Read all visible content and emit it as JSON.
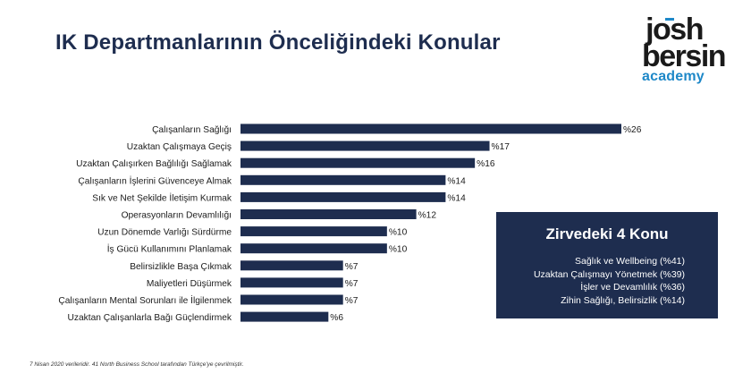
{
  "title": "IK Departmanlarının Önceliğindeki Konular",
  "logo": {
    "line1": "josh",
    "line2": "bersin",
    "line3": "academy"
  },
  "colors": {
    "bar": "#1e2d4f",
    "panel": "#1e2d4f",
    "accent": "#1e88c8"
  },
  "chart_data": {
    "type": "bar",
    "orientation": "horizontal",
    "categories": [
      "Çalışanların Sağlığı",
      "Uzaktan Çalışmaya Geçiş",
      "Uzaktan Çalışırken Bağlılığı Sağlamak",
      "Çalışanların İşlerini Güvenceye Almak",
      "Sık ve Net Şekilde İletişim Kurmak",
      "Operasyonların Devamlılığı",
      "Uzun Dönemde Varlığı Sürdürme",
      "İş Gücü Kullanımını Planlamak",
      "Belirsizlikle Başa Çıkmak",
      "Maliyetleri Düşürmek",
      "Çalışanların Mental Sorunları ile İlgilenmek",
      "Uzaktan Çalışanlarla Bağı Güçlendirmek"
    ],
    "values": [
      26,
      17,
      16,
      14,
      14,
      12,
      10,
      10,
      7,
      7,
      7,
      6
    ],
    "value_labels": [
      "%26",
      "%17",
      "%16",
      "%14",
      "%14",
      "%12",
      "%10",
      "%10",
      "%7",
      "%7",
      "%7",
      "%6"
    ],
    "xlim": [
      0,
      26
    ],
    "grid": false,
    "legend": "none"
  },
  "panel": {
    "title": "Zirvedeki 4 Konu",
    "items": [
      "Sağlık ve Wellbeing (%41)",
      "Uzaktan Çalışmayı Yönetmek (%39)",
      "İşler ve Devamlılık (%36)",
      "Zihin Sağlığı, Belirsizlik (%14)"
    ]
  },
  "footnote": "7 Nisan 2020 verileridir. 41 North Business School tarafından Türkçe'ye çevrilmiştir."
}
